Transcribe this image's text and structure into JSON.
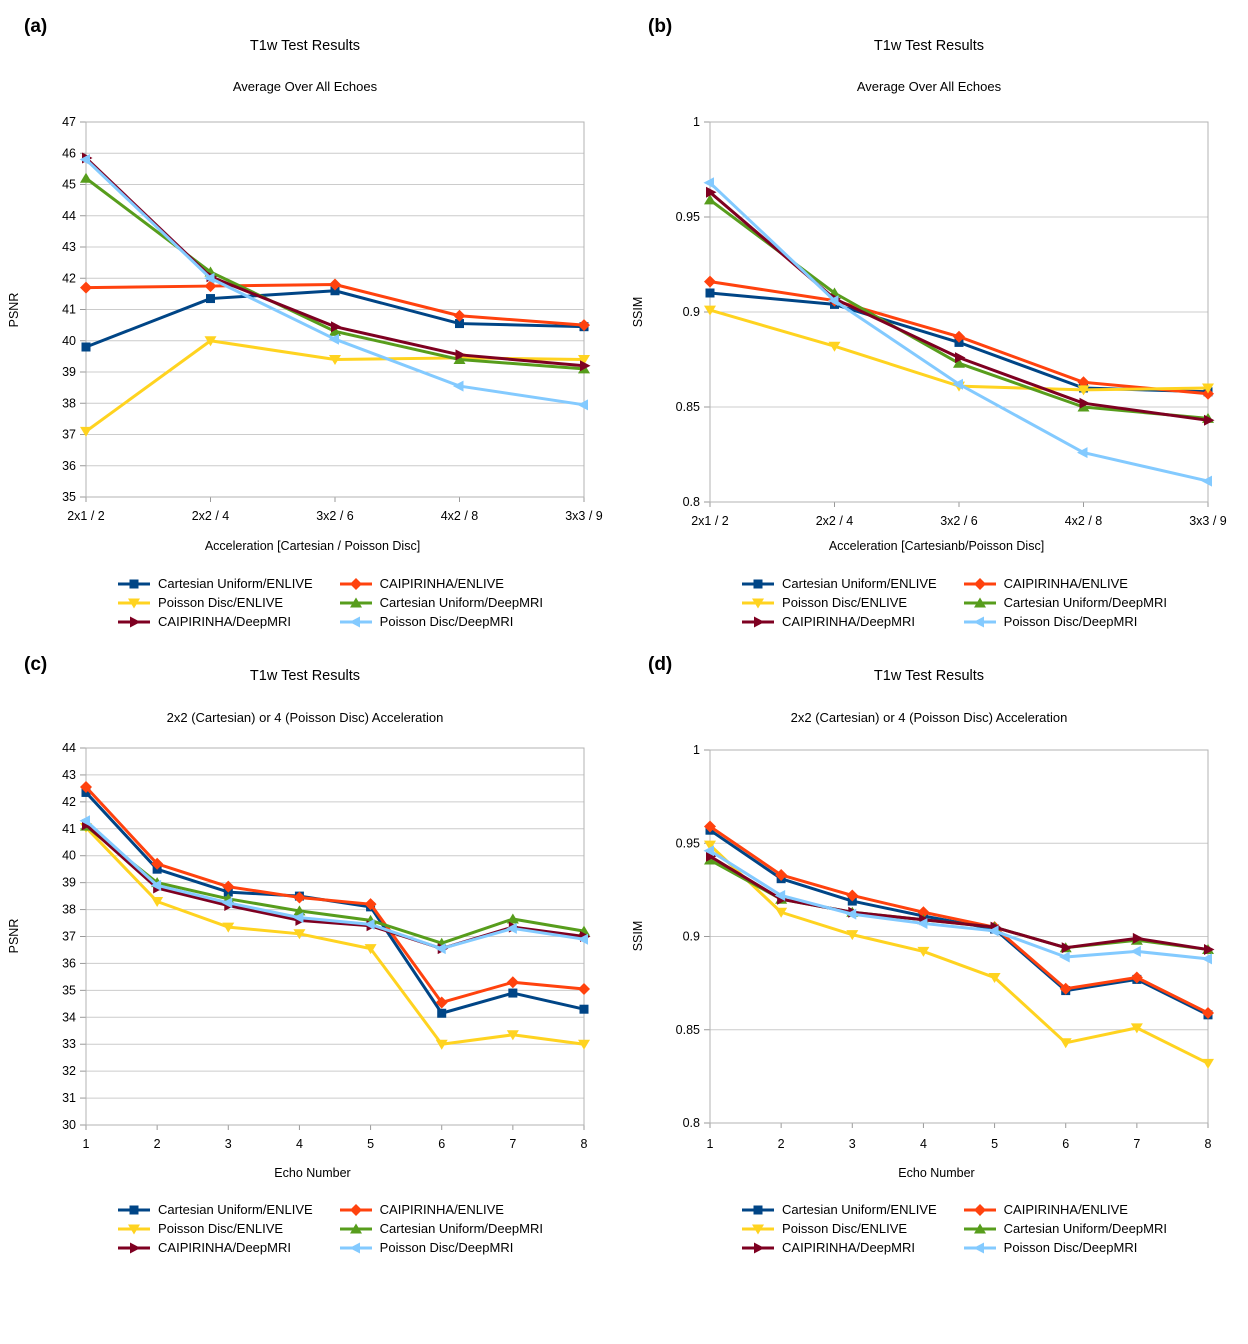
{
  "page_background": "#ffffff",
  "axis_colors": {
    "frame": "#b3b3b3",
    "grid": "#cccccc",
    "tick": "#999999",
    "text": "#000000"
  },
  "chart_data": [
    {
      "id": "a",
      "panel_label": "(a)",
      "type": "line",
      "title": "T1w Test Results",
      "subtitle": "Average Over All Echoes",
      "xlabel": "Acceleration [Cartesian / Poisson Disc]",
      "ylabel": "PSNR",
      "categories": [
        "2x1 / 2",
        "2x2 / 4",
        "3x2 / 6",
        "4x2 / 8",
        "3x3 / 9"
      ],
      "ylim": [
        35,
        47
      ],
      "ytick_step": 1,
      "grid": true,
      "legend_position": "bottom",
      "series": [
        {
          "name": "Cartesian Uniform/ENLIVE",
          "color": "#004586",
          "marker": "square",
          "values": [
            39.8,
            41.35,
            41.6,
            40.55,
            40.45
          ]
        },
        {
          "name": "CAIPIRINHA/ENLIVE",
          "color": "#FF420E",
          "marker": "diamond",
          "values": [
            41.7,
            41.75,
            41.8,
            40.8,
            40.5
          ]
        },
        {
          "name": "Poisson Disc/ENLIVE",
          "color": "#FFD320",
          "marker": "triangle-down",
          "values": [
            37.1,
            40.0,
            39.4,
            39.45,
            39.4
          ]
        },
        {
          "name": "Cartesian Uniform/DeepMRI",
          "color": "#579D1C",
          "marker": "triangle-up",
          "values": [
            45.2,
            42.2,
            40.3,
            39.4,
            39.1
          ]
        },
        {
          "name": "CAIPIRINHA/DeepMRI",
          "color": "#7E0021",
          "marker": "triangle-right",
          "values": [
            45.85,
            42.05,
            40.45,
            39.55,
            39.2
          ]
        },
        {
          "name": "Poisson Disc/DeepMRI",
          "color": "#83CAFF",
          "marker": "triangle-left",
          "values": [
            45.8,
            42.0,
            40.05,
            38.55,
            37.95
          ]
        }
      ]
    },
    {
      "id": "b",
      "panel_label": "(b)",
      "type": "line",
      "title": "T1w Test Results",
      "subtitle": "Average Over All Echoes",
      "xlabel": "Acceleration [Cartesianb/Poisson Disc]",
      "ylabel": "SSIM",
      "categories": [
        "2x1 / 2",
        "2x2 / 4",
        "3x2 / 6",
        "4x2 / 8",
        "3x3 / 9"
      ],
      "ylim": [
        0.8,
        1.0
      ],
      "ytick_step": 0.05,
      "grid": true,
      "legend_position": "bottom",
      "series": [
        {
          "name": "Cartesian Uniform/ENLIVE",
          "color": "#004586",
          "marker": "square",
          "values": [
            0.91,
            0.904,
            0.884,
            0.86,
            0.858
          ]
        },
        {
          "name": "CAIPIRINHA/ENLIVE",
          "color": "#FF420E",
          "marker": "diamond",
          "values": [
            0.916,
            0.906,
            0.887,
            0.863,
            0.857
          ]
        },
        {
          "name": "Poisson Disc/ENLIVE",
          "color": "#FFD320",
          "marker": "triangle-down",
          "values": [
            0.901,
            0.882,
            0.861,
            0.859,
            0.86
          ]
        },
        {
          "name": "Cartesian Uniform/DeepMRI",
          "color": "#579D1C",
          "marker": "triangle-up",
          "values": [
            0.959,
            0.91,
            0.873,
            0.85,
            0.844
          ]
        },
        {
          "name": "CAIPIRINHA/DeepMRI",
          "color": "#7E0021",
          "marker": "triangle-right",
          "values": [
            0.963,
            0.907,
            0.876,
            0.852,
            0.843
          ]
        },
        {
          "name": "Poisson Disc/DeepMRI",
          "color": "#83CAFF",
          "marker": "triangle-left",
          "values": [
            0.968,
            0.906,
            0.862,
            0.826,
            0.811
          ]
        }
      ]
    },
    {
      "id": "c",
      "panel_label": "(c)",
      "type": "line",
      "title": "T1w Test Results",
      "subtitle": "2x2 (Cartesian) or 4 (Poisson Disc) Acceleration",
      "xlabel": "Echo Number",
      "ylabel": "PSNR",
      "categories": [
        "1",
        "2",
        "3",
        "4",
        "5",
        "6",
        "7",
        "8"
      ],
      "ylim": [
        30,
        44
      ],
      "ytick_step": 1,
      "grid": true,
      "legend_position": "bottom",
      "series": [
        {
          "name": "Cartesian Uniform/ENLIVE",
          "color": "#004586",
          "marker": "square",
          "values": [
            42.35,
            39.5,
            38.65,
            38.5,
            38.1,
            34.15,
            34.9,
            34.3
          ]
        },
        {
          "name": "CAIPIRINHA/ENLIVE",
          "color": "#FF420E",
          "marker": "diamond",
          "values": [
            42.55,
            39.7,
            38.85,
            38.45,
            38.2,
            34.55,
            35.3,
            35.05
          ]
        },
        {
          "name": "Poisson Disc/ENLIVE",
          "color": "#FFD320",
          "marker": "triangle-down",
          "values": [
            41.05,
            38.3,
            37.35,
            37.1,
            36.55,
            33.0,
            33.35,
            33.0
          ]
        },
        {
          "name": "Cartesian Uniform/DeepMRI",
          "color": "#579D1C",
          "marker": "triangle-up",
          "values": [
            41.1,
            39.0,
            38.4,
            37.95,
            37.6,
            36.75,
            37.65,
            37.2
          ]
        },
        {
          "name": "CAIPIRINHA/DeepMRI",
          "color": "#7E0021",
          "marker": "triangle-right",
          "values": [
            41.15,
            38.8,
            38.15,
            37.6,
            37.4,
            36.55,
            37.35,
            37.0
          ]
        },
        {
          "name": "Poisson Disc/DeepMRI",
          "color": "#83CAFF",
          "marker": "triangle-left",
          "values": [
            41.3,
            38.9,
            38.25,
            37.7,
            37.45,
            36.55,
            37.3,
            36.9
          ]
        }
      ]
    },
    {
      "id": "d",
      "panel_label": "(d)",
      "type": "line",
      "title": "T1w Test Results",
      "subtitle": "2x2 (Cartesian) or 4 (Poisson Disc) Acceleration",
      "xlabel": "Echo Number",
      "ylabel": "SSIM",
      "categories": [
        "1",
        "2",
        "3",
        "4",
        "5",
        "6",
        "7",
        "8"
      ],
      "ylim": [
        0.8,
        1.0
      ],
      "ytick_step": 0.05,
      "grid": true,
      "legend_position": "bottom",
      "series": [
        {
          "name": "Cartesian Uniform/ENLIVE",
          "color": "#004586",
          "marker": "square",
          "values": [
            0.957,
            0.931,
            0.919,
            0.911,
            0.904,
            0.871,
            0.877,
            0.858
          ]
        },
        {
          "name": "CAIPIRINHA/ENLIVE",
          "color": "#FF420E",
          "marker": "diamond",
          "values": [
            0.959,
            0.933,
            0.922,
            0.913,
            0.905,
            0.872,
            0.878,
            0.859
          ]
        },
        {
          "name": "Poisson Disc/ENLIVE",
          "color": "#FFD320",
          "marker": "triangle-down",
          "values": [
            0.949,
            0.913,
            0.901,
            0.892,
            0.878,
            0.843,
            0.851,
            0.832
          ]
        },
        {
          "name": "Cartesian Uniform/DeepMRI",
          "color": "#579D1C",
          "marker": "triangle-up",
          "values": [
            0.941,
            0.92,
            0.913,
            0.909,
            0.905,
            0.894,
            0.898,
            0.893
          ]
        },
        {
          "name": "CAIPIRINHA/DeepMRI",
          "color": "#7E0021",
          "marker": "triangle-right",
          "values": [
            0.943,
            0.92,
            0.913,
            0.909,
            0.905,
            0.894,
            0.899,
            0.893
          ]
        },
        {
          "name": "Poisson Disc/DeepMRI",
          "color": "#83CAFF",
          "marker": "triangle-left",
          "values": [
            0.946,
            0.922,
            0.912,
            0.907,
            0.903,
            0.889,
            0.892,
            0.888
          ]
        }
      ]
    }
  ]
}
